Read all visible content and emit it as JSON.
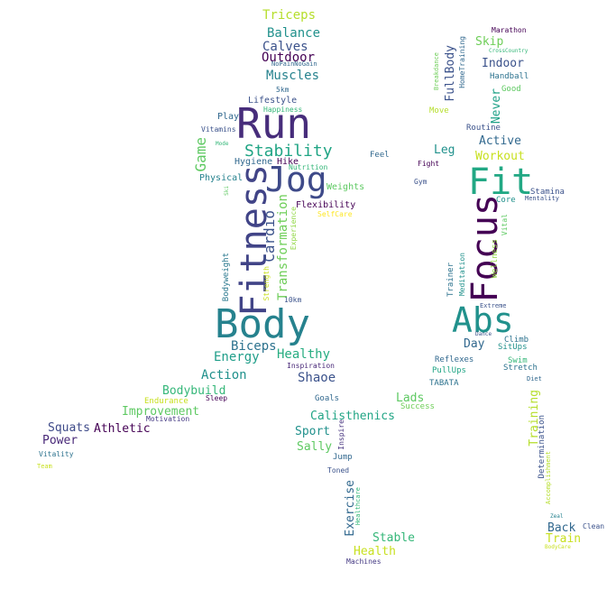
{
  "words": [
    {
      "id": "triceps",
      "text": "Triceps",
      "color": "#b5de2b"
    },
    {
      "id": "balance",
      "text": "Balance",
      "color": "#21918c"
    },
    {
      "id": "calves",
      "text": "Calves",
      "color": "#3b528b"
    },
    {
      "id": "outdoor",
      "text": "Outdoor",
      "color": "#440154"
    },
    {
      "id": "nopainnogain",
      "text": "NoPainNoGain",
      "color": "#31688e"
    },
    {
      "id": "muscles",
      "text": "Muscles",
      "color": "#26828e"
    },
    {
      "id": "5km",
      "text": "5km",
      "color": "#31688e"
    },
    {
      "id": "lifestyle",
      "text": "Lifestyle",
      "color": "#3b528b"
    },
    {
      "id": "happiness",
      "text": "Happiness",
      "color": "#35b779"
    },
    {
      "id": "play",
      "text": "Play",
      "color": "#31688e"
    },
    {
      "id": "run",
      "text": "Run",
      "color": "#472d7b"
    },
    {
      "id": "vitamins",
      "text": "Vitamins",
      "color": "#3b528b"
    },
    {
      "id": "game",
      "text": "Game",
      "color": "#5ec962"
    },
    {
      "id": "mode",
      "text": "Mode",
      "color": "#35b779"
    },
    {
      "id": "stability",
      "text": "Stability",
      "color": "#21a585"
    },
    {
      "id": "hygiene",
      "text": "Hygiene",
      "color": "#31688e"
    },
    {
      "id": "hike",
      "text": "Hike",
      "color": "#440154"
    },
    {
      "id": "nutrition",
      "text": "Nutrition",
      "color": "#35b779"
    },
    {
      "id": "physical",
      "text": "Physical",
      "color": "#26828e"
    },
    {
      "id": "jog",
      "text": "Jog",
      "color": "#3e4a89"
    },
    {
      "id": "fitness",
      "text": "Fitness",
      "color": "#414487"
    },
    {
      "id": "ski",
      "text": "Ski",
      "color": "#5ec962"
    },
    {
      "id": "weights",
      "text": "Weights",
      "color": "#5ec962"
    },
    {
      "id": "cardio",
      "text": "Cardio",
      "color": "#3b528b"
    },
    {
      "id": "flexibility",
      "text": "Flexibility",
      "color": "#440154"
    },
    {
      "id": "selfcare",
      "text": "SelfCare",
      "color": "#fde725"
    },
    {
      "id": "transformation",
      "text": "Transformation",
      "color": "#6ece58"
    },
    {
      "id": "experience",
      "text": "Experience",
      "color": "#90d743"
    },
    {
      "id": "strength",
      "text": "Strength",
      "color": "#c8e020"
    },
    {
      "id": "bodyweight",
      "text": "Bodyweight",
      "color": "#2a788e"
    },
    {
      "id": "10km",
      "text": "10km",
      "color": "#3b528b"
    },
    {
      "id": "body",
      "text": "Body",
      "color": "#26828e"
    },
    {
      "id": "biceps",
      "text": "Biceps",
      "color": "#2c728e"
    },
    {
      "id": "energy",
      "text": "Energy",
      "color": "#1f9e89"
    },
    {
      "id": "healthy",
      "text": "Healthy",
      "color": "#27ad81"
    },
    {
      "id": "inspiration",
      "text": "Inspiration",
      "color": "#482878"
    },
    {
      "id": "action",
      "text": "Action",
      "color": "#21918c"
    },
    {
      "id": "shaoe",
      "text": "Shaoe",
      "color": "#3b528b"
    },
    {
      "id": "bodybuild",
      "text": "Bodybuild",
      "color": "#35b779"
    },
    {
      "id": "endurance",
      "text": "Endurance",
      "color": "#c8e020"
    },
    {
      "id": "sleep",
      "text": "Sleep",
      "color": "#440154"
    },
    {
      "id": "improvement",
      "text": "Improvement",
      "color": "#5ec962"
    },
    {
      "id": "motivation",
      "text": "Motivation",
      "color": "#443983"
    },
    {
      "id": "squats",
      "text": "Squats",
      "color": "#3e4a89"
    },
    {
      "id": "athletic",
      "text": "Athletic",
      "color": "#440154"
    },
    {
      "id": "power",
      "text": "Power",
      "color": "#482878"
    },
    {
      "id": "vitality",
      "text": "Vitality",
      "color": "#2c728e"
    },
    {
      "id": "team",
      "text": "Team",
      "color": "#c8e020"
    },
    {
      "id": "goals",
      "text": "Goals",
      "color": "#31688e"
    },
    {
      "id": "calisthenics",
      "text": "Calisthenics",
      "color": "#21a585"
    },
    {
      "id": "sport",
      "text": "Sport",
      "color": "#21918c"
    },
    {
      "id": "sally",
      "text": "Sally",
      "color": "#5ec962"
    },
    {
      "id": "inspire",
      "text": "Inspire",
      "color": "#46337e"
    },
    {
      "id": "jump",
      "text": "Jump",
      "color": "#31688e"
    },
    {
      "id": "toned",
      "text": "Toned",
      "color": "#3b528b"
    },
    {
      "id": "exercise",
      "text": "Exercise",
      "color": "#31688e"
    },
    {
      "id": "healthcare",
      "text": "Healthcare",
      "color": "#35b779"
    },
    {
      "id": "stable",
      "text": "Stable",
      "color": "#35b779"
    },
    {
      "id": "health",
      "text": "Health",
      "color": "#c8e020"
    },
    {
      "id": "machines",
      "text": "Machines",
      "color": "#443983"
    },
    {
      "id": "fullbody",
      "text": "FullBody",
      "color": "#3b528b"
    },
    {
      "id": "breakdance",
      "text": "Breakdance",
      "color": "#6ece58"
    },
    {
      "id": "hometraining",
      "text": "HomeTraining",
      "color": "#31688e"
    },
    {
      "id": "skip",
      "text": "Skip",
      "color": "#6ece58"
    },
    {
      "id": "marathon",
      "text": "Marathon",
      "color": "#440154"
    },
    {
      "id": "crosscountry",
      "text": "CrossCountry",
      "color": "#35b779"
    },
    {
      "id": "indoor",
      "text": "Indoor",
      "color": "#3b528b"
    },
    {
      "id": "handball",
      "text": "Handball",
      "color": "#2c728e"
    },
    {
      "id": "good",
      "text": "Good",
      "color": "#5ec962"
    },
    {
      "id": "move",
      "text": "Move",
      "color": "#b5de2b"
    },
    {
      "id": "never",
      "text": "Never",
      "color": "#1fa187"
    },
    {
      "id": "routine",
      "text": "Routine",
      "color": "#3b528b"
    },
    {
      "id": "active",
      "text": "Active",
      "color": "#31688e"
    },
    {
      "id": "leg",
      "text": "Leg",
      "color": "#21918c"
    },
    {
      "id": "feel",
      "text": "Feel",
      "color": "#31688e"
    },
    {
      "id": "fight",
      "text": "Fight",
      "color": "#440154"
    },
    {
      "id": "workout",
      "text": "Workout",
      "color": "#c8e020"
    },
    {
      "id": "fit",
      "text": "Fit",
      "color": "#22a884"
    },
    {
      "id": "gym",
      "text": "Gym",
      "color": "#3b528b"
    },
    {
      "id": "stamina",
      "text": "Stamina",
      "color": "#3b528b"
    },
    {
      "id": "core",
      "text": "Core",
      "color": "#21918c"
    },
    {
      "id": "mentality",
      "text": "Mentality",
      "color": "#3b528b"
    },
    {
      "id": "focus",
      "text": "Focus",
      "color": "#440154"
    },
    {
      "id": "vital",
      "text": "Vital",
      "color": "#5ec962"
    },
    {
      "id": "wellness",
      "text": "Wellness",
      "color": "#90d743"
    },
    {
      "id": "trainer",
      "text": "Trainer",
      "color": "#2c728e"
    },
    {
      "id": "meditation",
      "text": "Meditation",
      "color": "#21918c"
    },
    {
      "id": "abs",
      "text": "Abs",
      "color": "#21918c"
    },
    {
      "id": "extreme",
      "text": "Extreme",
      "color": "#3b528b"
    },
    {
      "id": "dance",
      "text": "Dance",
      "color": "#3b528b"
    },
    {
      "id": "day",
      "text": "Day",
      "color": "#31688e"
    },
    {
      "id": "climb",
      "text": "Climb",
      "color": "#2c728e"
    },
    {
      "id": "situps",
      "text": "SitUps",
      "color": "#21918c"
    },
    {
      "id": "reflexes",
      "text": "Reflexes",
      "color": "#31688e"
    },
    {
      "id": "swim",
      "text": "Swim",
      "color": "#35b779"
    },
    {
      "id": "stretch",
      "text": "Stretch",
      "color": "#2c728e"
    },
    {
      "id": "pullups",
      "text": "PullUps",
      "color": "#21a585"
    },
    {
      "id": "diet",
      "text": "Diet",
      "color": "#31688e"
    },
    {
      "id": "tabata",
      "text": "TABATA",
      "color": "#2c728e"
    },
    {
      "id": "lads",
      "text": "Lads",
      "color": "#5ec962"
    },
    {
      "id": "success",
      "text": "Success",
      "color": "#6ece58"
    },
    {
      "id": "training",
      "text": "Training",
      "color": "#b5de2b"
    },
    {
      "id": "determination",
      "text": "Determination",
      "color": "#3b528b"
    },
    {
      "id": "accomplishment",
      "text": "Accomplishment",
      "color": "#b5de2b"
    },
    {
      "id": "zeal",
      "text": "Zeal",
      "color": "#26828e"
    },
    {
      "id": "back",
      "text": "Back",
      "color": "#31688e"
    },
    {
      "id": "clean",
      "text": "Clean",
      "color": "#3b528b"
    },
    {
      "id": "train",
      "text": "Train",
      "color": "#c8e020"
    },
    {
      "id": "bodycare",
      "text": "BodyCare",
      "color": "#c8e020"
    }
  ]
}
